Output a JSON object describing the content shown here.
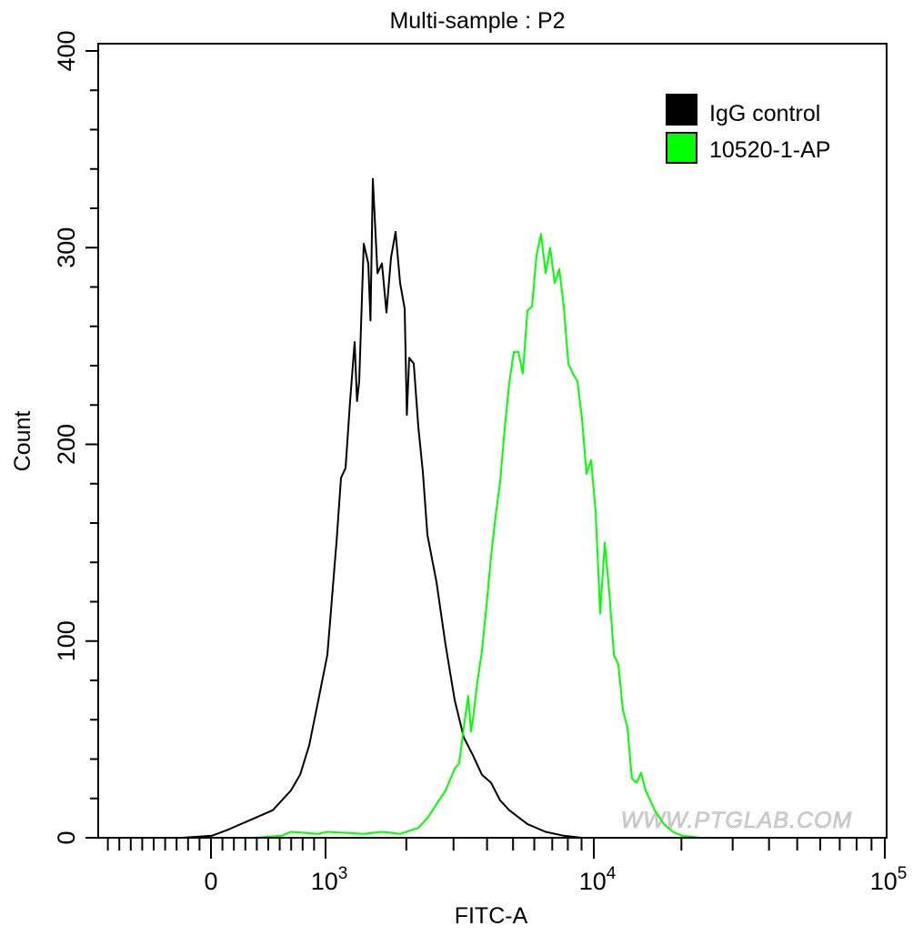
{
  "chart_data": {
    "type": "line",
    "title": "Multi-sample : P2",
    "xlabel": "FITC-A",
    "ylabel": "Count",
    "x_scale": "biexponential",
    "xlim": [
      -1000,
      100000
    ],
    "ylim": [
      0,
      400
    ],
    "x_tick_labels": [
      {
        "value": 0,
        "base": "0",
        "exp": ""
      },
      {
        "value": 1000,
        "base": "10",
        "exp": "3"
      },
      {
        "value": 10000,
        "base": "10",
        "exp": "4"
      },
      {
        "value": 100000,
        "base": "10",
        "exp": "5"
      }
    ],
    "y_ticks": [
      0,
      100,
      200,
      300,
      400
    ],
    "y_tick_labels": [
      "0",
      "100",
      "200",
      "300",
      "400"
    ],
    "grid": false,
    "legend_position": "top-right",
    "watermark": "WWW.PTGLAB.COM",
    "series": [
      {
        "name": "IgG control",
        "color": "#000000",
        "x": [
          -254,
          8,
          143,
          381,
          540,
          698,
          778,
          857,
          937,
          1016,
          1098,
          1142,
          1187,
          1235,
          1284,
          1310,
          1335,
          1388,
          1443,
          1470,
          1501,
          1561,
          1623,
          1687,
          1754,
          1824,
          1897,
          1972,
          2010,
          2050,
          2132,
          2217,
          2305,
          2397,
          2592,
          2803,
          3030,
          3276,
          3542,
          3830,
          4140,
          4476,
          4839,
          5655,
          6612,
          7728,
          9035
        ],
        "y": [
          0,
          1,
          4,
          10,
          14,
          24,
          32,
          47,
          70,
          93,
          150,
          183,
          188,
          222,
          252,
          222,
          232,
          302,
          292,
          263,
          335,
          287,
          292,
          267,
          295,
          308,
          282,
          269,
          215,
          244,
          241,
          209,
          186,
          154,
          130,
          98,
          70,
          51,
          42,
          32,
          28,
          19,
          14,
          7,
          3,
          1,
          0
        ]
      },
      {
        "name": "10520-1-AP",
        "color": "#00e000",
        "x": [
          381,
          619,
          698,
          937,
          1016,
          1388,
          1623,
          1897,
          2217,
          2397,
          2592,
          2803,
          3030,
          3150,
          3276,
          3404,
          3487,
          3542,
          3680,
          3830,
          3980,
          4140,
          4306,
          4476,
          4654,
          4839,
          5030,
          5230,
          5440,
          5655,
          5880,
          6115,
          6360,
          6612,
          6875,
          7150,
          7434,
          7728,
          8035,
          8355,
          8690,
          9035,
          9395,
          9770,
          10145,
          10517,
          10912,
          11300,
          11720,
          12146,
          12590,
          13050,
          13520,
          14030,
          14540,
          15070,
          15620,
          16200,
          17400,
          18710,
          20100,
          23230
        ],
        "y": [
          0,
          1,
          3,
          2,
          3,
          2,
          3,
          2,
          5,
          10,
          17,
          24,
          35,
          38,
          56,
          72,
          54,
          60,
          79,
          95,
          118,
          143,
          164,
          181,
          208,
          231,
          247,
          247,
          236,
          268,
          270,
          296,
          307,
          287,
          300,
          282,
          289,
          270,
          241,
          236,
          232,
          213,
          185,
          192,
          166,
          114,
          150,
          125,
          93,
          88,
          65,
          56,
          30,
          28,
          33,
          24,
          19,
          14,
          7,
          3,
          1,
          0
        ]
      }
    ]
  }
}
